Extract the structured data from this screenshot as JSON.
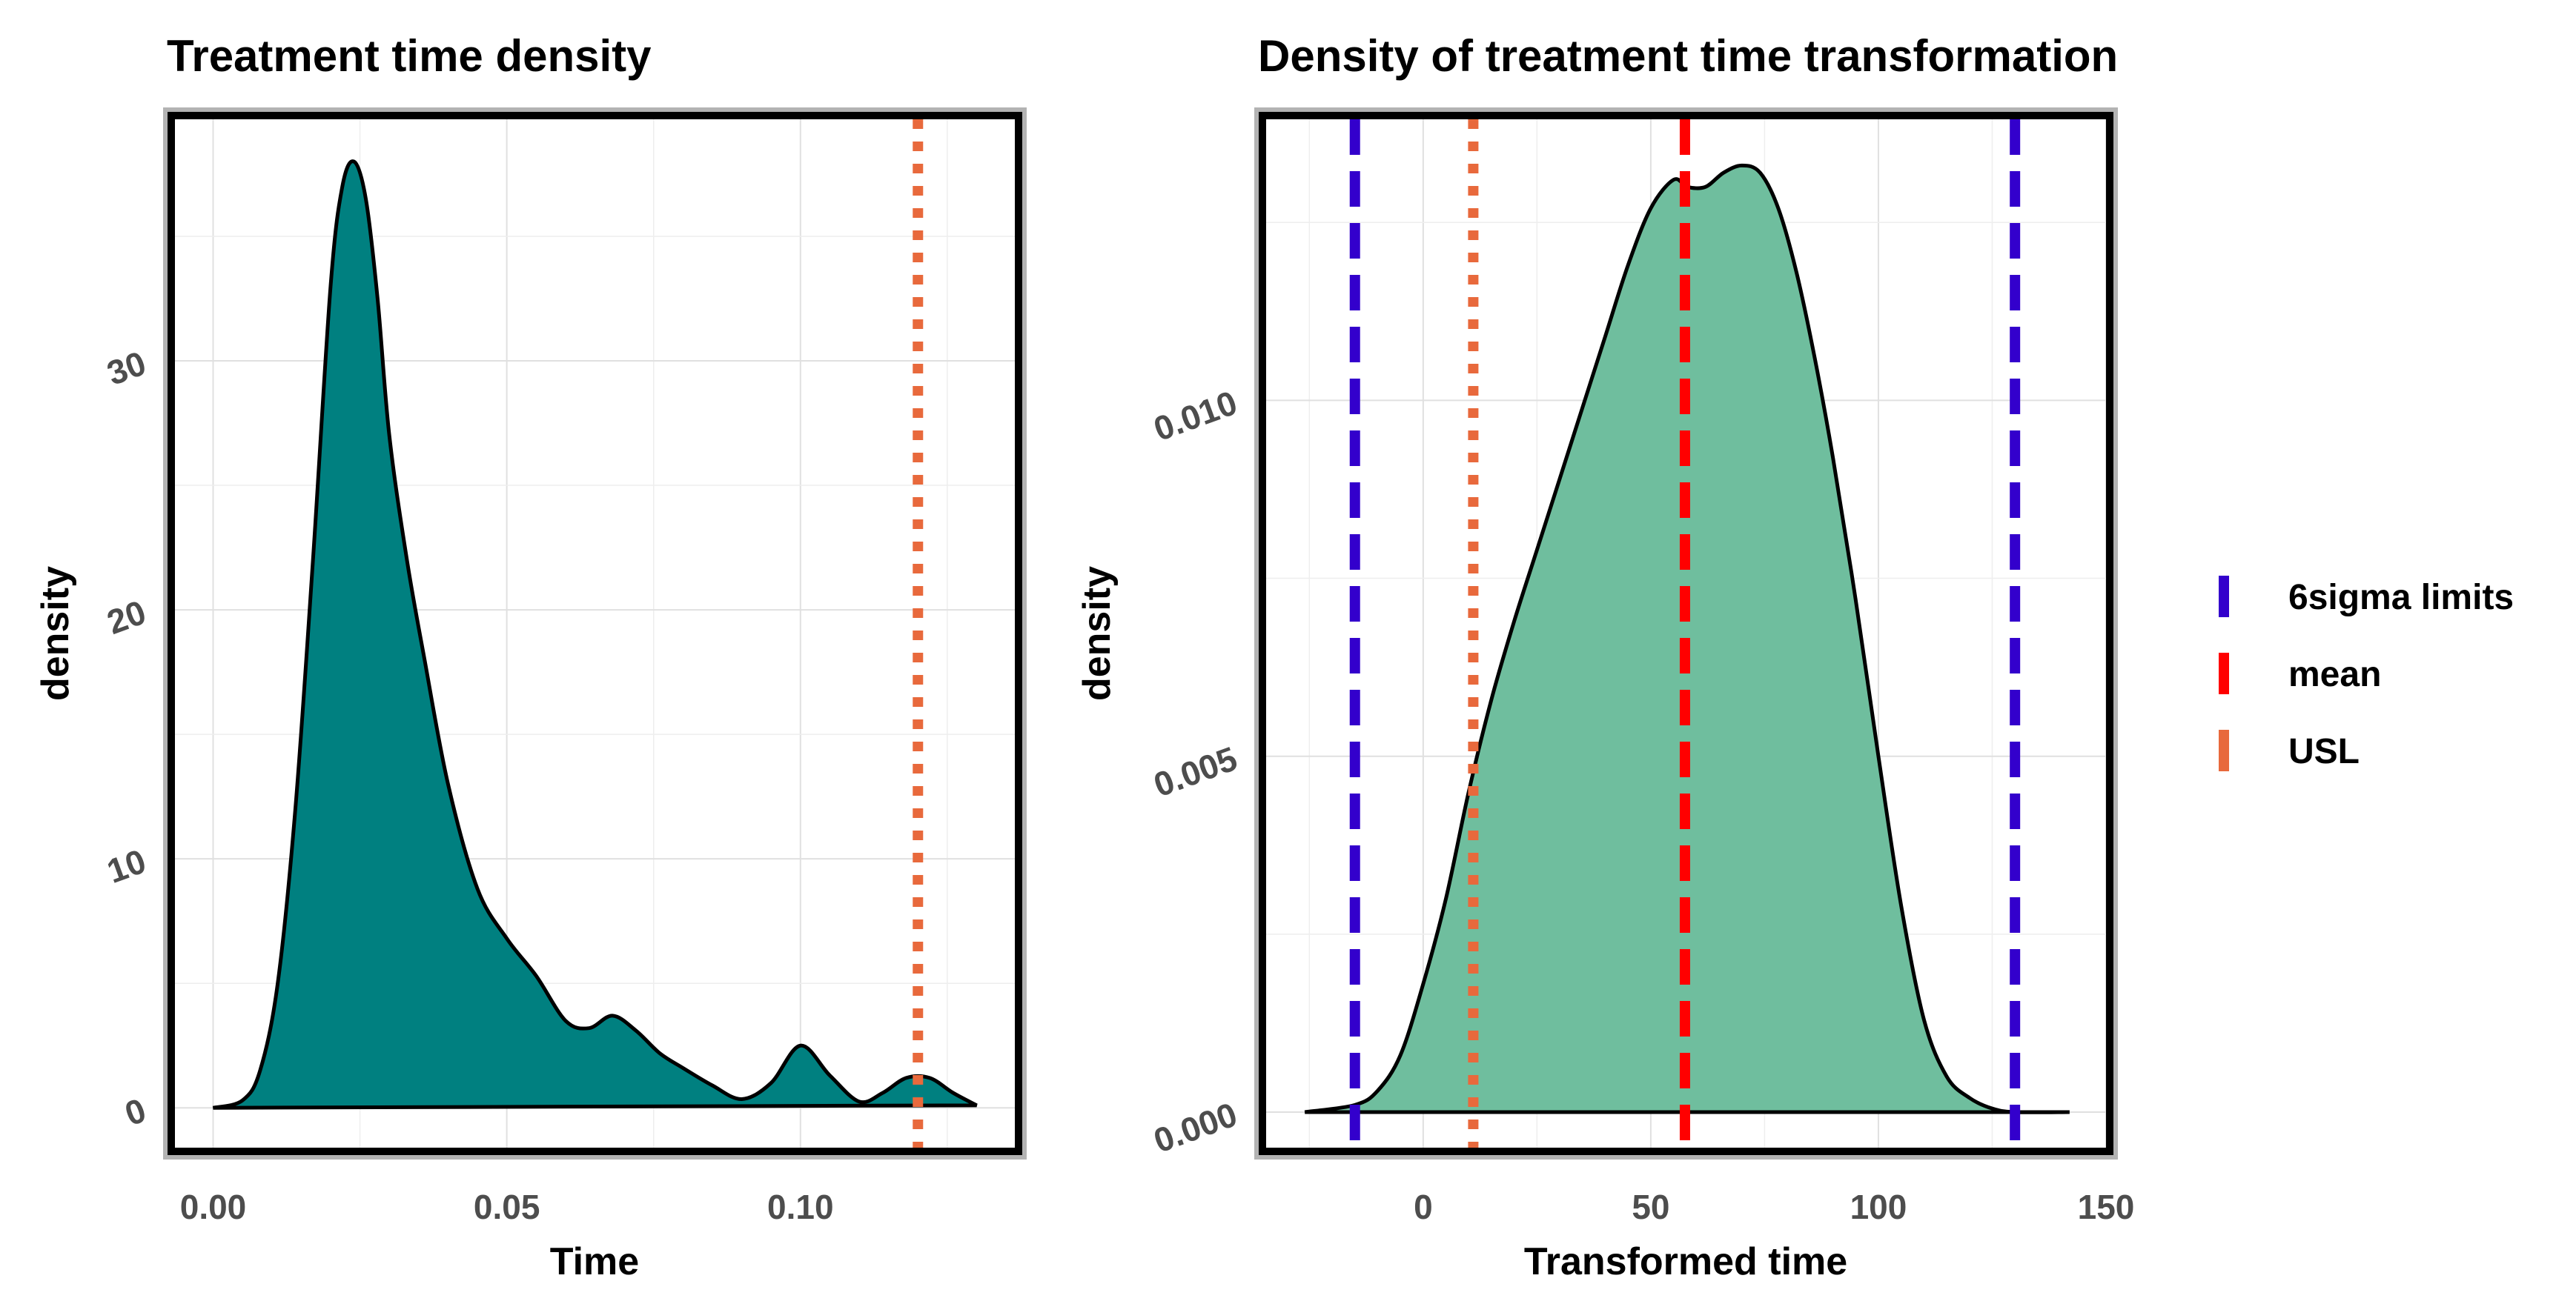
{
  "chart_data": [
    {
      "type": "area",
      "title": "Treatment time density",
      "xlabel": "Time",
      "ylabel": "density",
      "xlim": [
        -0.0065,
        0.1365
      ],
      "ylim": [
        -1.6,
        39.7
      ],
      "x_ticks": [
        0.0,
        0.05,
        0.1
      ],
      "x_tick_labels": [
        "0.00",
        "0.05",
        "0.10"
      ],
      "y_ticks": [
        0,
        10,
        20,
        30
      ],
      "y_tick_labels": [
        "0",
        "10",
        "20",
        "30"
      ],
      "fill_color": "#008080",
      "density": {
        "x": [
          0.0,
          0.005,
          0.008,
          0.011,
          0.014,
          0.017,
          0.02,
          0.022,
          0.024,
          0.026,
          0.028,
          0.03,
          0.033,
          0.036,
          0.04,
          0.045,
          0.05,
          0.055,
          0.06,
          0.064,
          0.068,
          0.072,
          0.076,
          0.08,
          0.085,
          0.09,
          0.095,
          0.1,
          0.105,
          0.11,
          0.114,
          0.118,
          0.122,
          0.126,
          0.13
        ],
        "y": [
          0,
          0.3,
          1.5,
          5,
          12,
          22,
          33,
          37,
          38,
          36.5,
          32.5,
          27,
          22,
          18,
          13,
          8.8,
          6.8,
          5.3,
          3.5,
          3.2,
          3.7,
          3.1,
          2.2,
          1.6,
          0.9,
          0.35,
          1,
          2.5,
          1.3,
          0.25,
          0.6,
          1.2,
          1.2,
          0.6,
          0.1
        ]
      },
      "vlines": [
        {
          "name": "USL",
          "x": 0.12,
          "color": "#e8693c",
          "style": "dotted"
        }
      ]
    },
    {
      "type": "area",
      "title": "Density of treatment time transformation",
      "xlabel": "Transformed time",
      "ylabel": "density",
      "xlim": [
        -34.5,
        150
      ],
      "ylim": [
        -0.0005,
        0.01395
      ],
      "x_ticks": [
        0,
        50,
        100,
        150
      ],
      "x_tick_labels": [
        "0",
        "50",
        "100",
        "150"
      ],
      "y_ticks": [
        0.0,
        0.005,
        0.01
      ],
      "y_tick_labels": [
        "0.000",
        "0.005",
        "0.010"
      ],
      "fill_color": "#6fbe9e",
      "density": {
        "x": [
          -26,
          -15,
          -10,
          -5,
          0,
          5,
          10,
          15,
          20,
          25,
          30,
          35,
          40,
          45,
          50,
          55,
          58,
          62,
          66,
          70,
          74,
          78,
          82,
          86,
          90,
          95,
          100,
          105,
          110,
          115,
          120,
          125,
          130,
          142
        ],
        "y": [
          0,
          0.0001,
          0.0003,
          0.0008,
          0.0018,
          0.003,
          0.0045,
          0.0058,
          0.0069,
          0.0079,
          0.0089,
          0.0099,
          0.0109,
          0.0119,
          0.0127,
          0.0131,
          0.013,
          0.013,
          0.0132,
          0.0133,
          0.0132,
          0.0127,
          0.0118,
          0.0106,
          0.0092,
          0.0072,
          0.005,
          0.0029,
          0.0013,
          0.0005,
          0.0002,
          5e-05,
          0,
          0
        ]
      },
      "vlines": [
        {
          "name": "6sigma limits",
          "x": -15,
          "color": "#3300cc",
          "style": "dashed"
        },
        {
          "name": "6sigma limits",
          "x": 130,
          "color": "#3300cc",
          "style": "dashed"
        },
        {
          "name": "mean",
          "x": 57.5,
          "color": "#ff0000",
          "style": "dashed"
        },
        {
          "name": "USL",
          "x": 11,
          "color": "#e8693c",
          "style": "dotted"
        }
      ]
    }
  ],
  "legend": {
    "items": [
      {
        "label": "6sigma limits",
        "color": "#3300cc"
      },
      {
        "label": "mean",
        "color": "#ff0000"
      },
      {
        "label": "USL",
        "color": "#e8693c"
      }
    ]
  }
}
